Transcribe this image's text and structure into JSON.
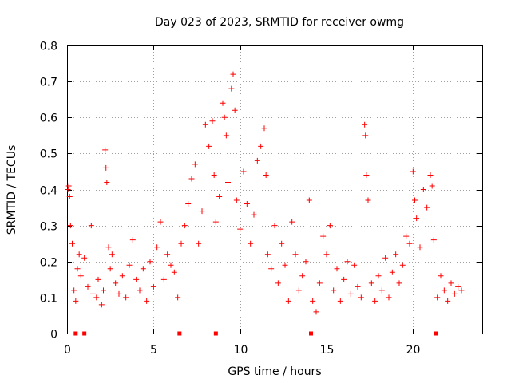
{
  "chart_data": {
    "type": "scatter",
    "title": "Day 023 of 2023, SRMTID for receiver owmg",
    "xlabel": "GPS time / hours",
    "ylabel": "SRMTID / TECUs",
    "xlim": [
      0,
      24
    ],
    "ylim": [
      0,
      0.8
    ],
    "xticks": [
      "0",
      "5",
      "10",
      "15",
      "20"
    ],
    "yticks": [
      "0",
      "0.1",
      "0.2",
      "0.3",
      "0.4",
      "0.5",
      "0.6",
      "0.7",
      "0.8"
    ],
    "grid": true,
    "marker": "+",
    "color": "#ff0000",
    "series": [
      {
        "name": "SRMTID",
        "points": [
          [
            0.05,
            0.4
          ],
          [
            0.1,
            0.41
          ],
          [
            0.15,
            0.38
          ],
          [
            0.2,
            0.3
          ],
          [
            0.3,
            0.25
          ],
          [
            0.4,
            0.12
          ],
          [
            0.5,
            0.09
          ],
          [
            0.6,
            0.18
          ],
          [
            0.7,
            0.22
          ],
          [
            0.8,
            0.16
          ],
          [
            1.0,
            0.21
          ],
          [
            1.2,
            0.13
          ],
          [
            1.4,
            0.3
          ],
          [
            1.5,
            0.11
          ],
          [
            1.7,
            0.1
          ],
          [
            1.8,
            0.15
          ],
          [
            2.0,
            0.08
          ],
          [
            2.1,
            0.12
          ],
          [
            2.2,
            0.51
          ],
          [
            2.25,
            0.46
          ],
          [
            2.3,
            0.42
          ],
          [
            2.4,
            0.24
          ],
          [
            2.5,
            0.18
          ],
          [
            2.6,
            0.22
          ],
          [
            2.8,
            0.14
          ],
          [
            3.0,
            0.11
          ],
          [
            3.2,
            0.16
          ],
          [
            3.4,
            0.1
          ],
          [
            3.6,
            0.19
          ],
          [
            3.8,
            0.26
          ],
          [
            4.0,
            0.15
          ],
          [
            4.2,
            0.12
          ],
          [
            4.4,
            0.18
          ],
          [
            4.6,
            0.09
          ],
          [
            4.8,
            0.2
          ],
          [
            5.0,
            0.13
          ],
          [
            5.2,
            0.24
          ],
          [
            5.4,
            0.31
          ],
          [
            5.6,
            0.15
          ],
          [
            5.8,
            0.22
          ],
          [
            6.0,
            0.19
          ],
          [
            6.2,
            0.17
          ],
          [
            6.4,
            0.1
          ],
          [
            6.6,
            0.25
          ],
          [
            6.8,
            0.3
          ],
          [
            7.0,
            0.36
          ],
          [
            7.2,
            0.43
          ],
          [
            7.4,
            0.47
          ],
          [
            7.6,
            0.25
          ],
          [
            7.8,
            0.34
          ],
          [
            8.0,
            0.58
          ],
          [
            8.2,
            0.52
          ],
          [
            8.4,
            0.59
          ],
          [
            8.5,
            0.44
          ],
          [
            8.6,
            0.31
          ],
          [
            8.8,
            0.38
          ],
          [
            9.0,
            0.64
          ],
          [
            9.1,
            0.6
          ],
          [
            9.2,
            0.55
          ],
          [
            9.3,
            0.42
          ],
          [
            9.5,
            0.68
          ],
          [
            9.6,
            0.72
          ],
          [
            9.7,
            0.62
          ],
          [
            9.8,
            0.37
          ],
          [
            10.0,
            0.29
          ],
          [
            10.2,
            0.45
          ],
          [
            10.4,
            0.36
          ],
          [
            10.6,
            0.25
          ],
          [
            10.8,
            0.33
          ],
          [
            11.0,
            0.48
          ],
          [
            11.2,
            0.52
          ],
          [
            11.4,
            0.57
          ],
          [
            11.5,
            0.44
          ],
          [
            11.6,
            0.22
          ],
          [
            11.8,
            0.18
          ],
          [
            12.0,
            0.3
          ],
          [
            12.2,
            0.14
          ],
          [
            12.4,
            0.25
          ],
          [
            12.6,
            0.19
          ],
          [
            12.8,
            0.09
          ],
          [
            13.0,
            0.31
          ],
          [
            13.2,
            0.22
          ],
          [
            13.4,
            0.12
          ],
          [
            13.6,
            0.16
          ],
          [
            13.8,
            0.2
          ],
          [
            14.0,
            0.37
          ],
          [
            14.2,
            0.09
          ],
          [
            14.4,
            0.06
          ],
          [
            14.6,
            0.14
          ],
          [
            14.8,
            0.27
          ],
          [
            15.0,
            0.22
          ],
          [
            15.2,
            0.3
          ],
          [
            15.4,
            0.12
          ],
          [
            15.6,
            0.18
          ],
          [
            15.8,
            0.09
          ],
          [
            16.0,
            0.15
          ],
          [
            16.2,
            0.2
          ],
          [
            16.4,
            0.11
          ],
          [
            16.6,
            0.19
          ],
          [
            16.8,
            0.13
          ],
          [
            17.0,
            0.1
          ],
          [
            17.2,
            0.58
          ],
          [
            17.25,
            0.55
          ],
          [
            17.3,
            0.44
          ],
          [
            17.4,
            0.37
          ],
          [
            17.6,
            0.14
          ],
          [
            17.8,
            0.09
          ],
          [
            18.0,
            0.16
          ],
          [
            18.2,
            0.12
          ],
          [
            18.4,
            0.21
          ],
          [
            18.6,
            0.1
          ],
          [
            18.8,
            0.17
          ],
          [
            19.0,
            0.22
          ],
          [
            19.2,
            0.14
          ],
          [
            19.4,
            0.19
          ],
          [
            19.6,
            0.27
          ],
          [
            19.8,
            0.25
          ],
          [
            20.0,
            0.45
          ],
          [
            20.1,
            0.37
          ],
          [
            20.2,
            0.32
          ],
          [
            20.4,
            0.24
          ],
          [
            20.6,
            0.4
          ],
          [
            20.8,
            0.35
          ],
          [
            21.0,
            0.44
          ],
          [
            21.1,
            0.41
          ],
          [
            21.2,
            0.26
          ],
          [
            21.4,
            0.1
          ],
          [
            21.6,
            0.16
          ],
          [
            21.8,
            0.12
          ],
          [
            22.0,
            0.09
          ],
          [
            22.2,
            0.14
          ],
          [
            22.4,
            0.11
          ],
          [
            22.6,
            0.13
          ],
          [
            22.8,
            0.12
          ]
        ]
      }
    ],
    "zero_markers": [
      0.5,
      1.0,
      6.5,
      8.6,
      14.1,
      21.3
    ]
  }
}
